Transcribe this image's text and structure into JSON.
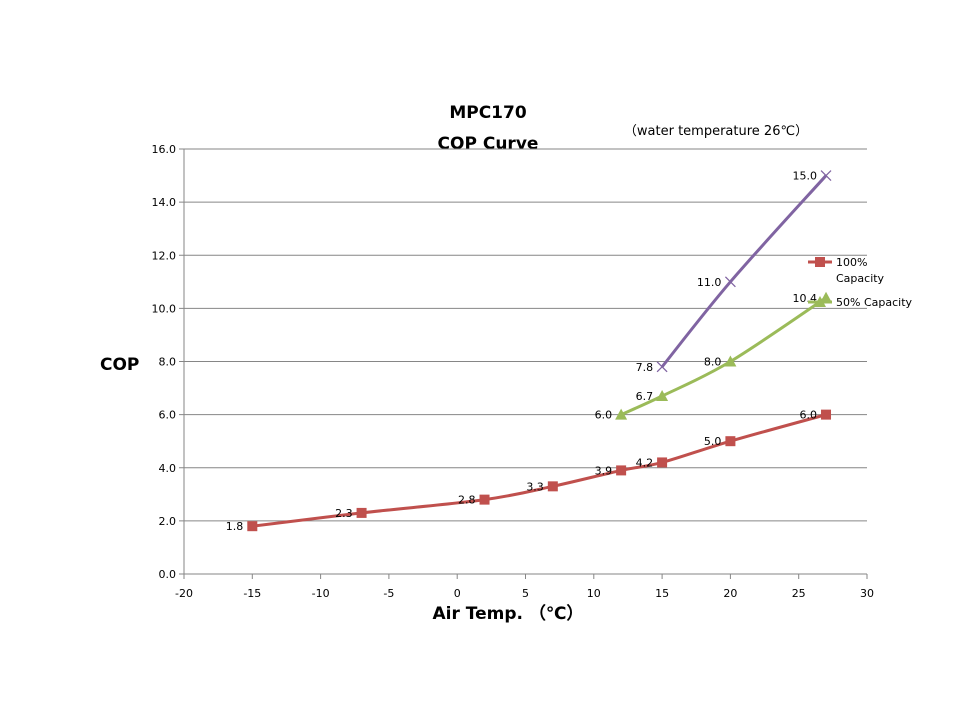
{
  "chart_data": {
    "type": "line",
    "title": "MPC170",
    "subtitle": "COP Curve",
    "note": "（water  temperature 26℃）",
    "xlabel": "Air Temp.  （℃）",
    "ylabel": "COP",
    "xlim": [
      -20,
      30
    ],
    "ylim": [
      0,
      16
    ],
    "xticks": [
      -20,
      -15,
      -10,
      -5,
      0,
      5,
      10,
      15,
      20,
      25,
      30
    ],
    "yticks": [
      0,
      2,
      4,
      6,
      8,
      10,
      12,
      14,
      16
    ],
    "xtick_labels": [
      "-20",
      "-15",
      "-10",
      "-5",
      "0",
      "5",
      "10",
      "15",
      "20",
      "25",
      "30"
    ],
    "ytick_labels": [
      "0.0",
      "2.0",
      "4.0",
      "6.0",
      "8.0",
      "10.0",
      "12.0",
      "14.0",
      "16.0"
    ],
    "grid": "horizontal",
    "legend_position": "right",
    "series": [
      {
        "name": "100% Capacity",
        "legend_lines": [
          "100%",
          "Capacity"
        ],
        "color": "#C0504D",
        "marker": "square",
        "x": [
          -15,
          -7,
          2,
          7,
          12,
          15,
          20,
          27
        ],
        "y": [
          1.8,
          2.3,
          2.8,
          3.3,
          3.9,
          4.2,
          5.0,
          6.0
        ],
        "labels": [
          "1.8",
          "2.3",
          "2.8",
          "3.3",
          "3.9",
          "4.2",
          "5.0",
          "6.0"
        ]
      },
      {
        "name": "50% Capacity",
        "legend_lines": [
          "50% Capacity"
        ],
        "color": "#9BBB59",
        "marker": "triangle",
        "x": [
          12,
          15,
          20,
          27
        ],
        "y": [
          6.0,
          6.7,
          8.0,
          10.4
        ],
        "labels": [
          "6.0",
          "6.7",
          "8.0",
          "10.4"
        ]
      },
      {
        "name": "",
        "legend_lines": [],
        "color": "#8064A2",
        "marker": "x",
        "x": [
          15,
          20,
          27
        ],
        "y": [
          7.8,
          11.0,
          15.0
        ],
        "labels": [
          "7.8",
          "11.0",
          "15.0"
        ]
      }
    ]
  }
}
